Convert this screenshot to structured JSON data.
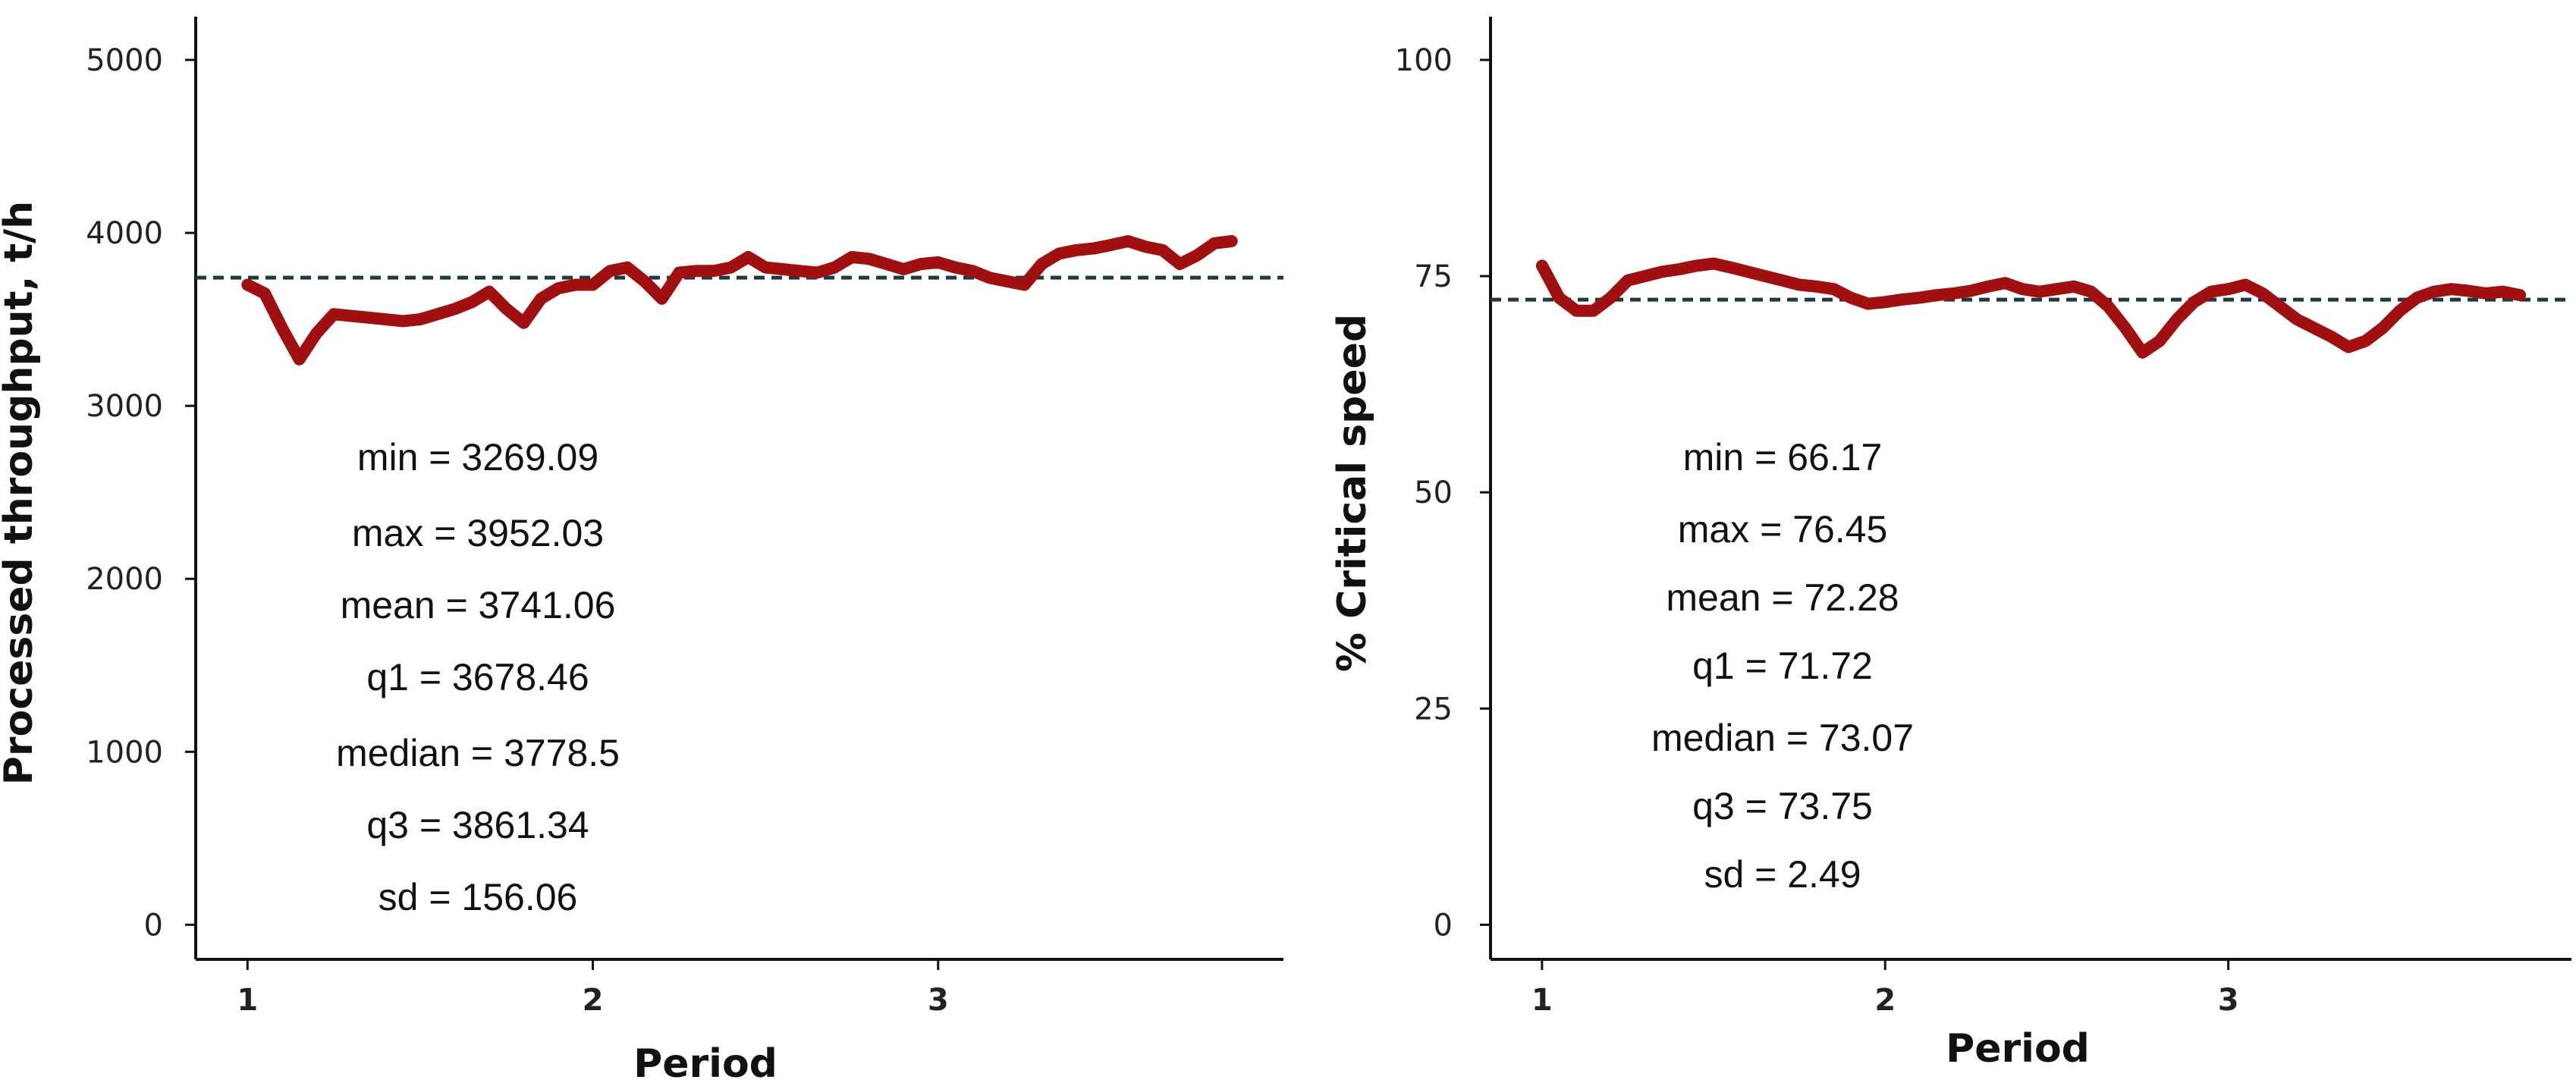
{
  "colors": {
    "series": "#A01010",
    "mean_line": "#1d3a40",
    "axis": "#111111"
  },
  "chart_data": [
    {
      "type": "line",
      "xlabel": "Period",
      "ylabel": "Processed throughput, t/h",
      "xlim": [
        0.85,
        4.0
      ],
      "ylim": [
        -200,
        5250
      ],
      "x_ticks": [
        1,
        2,
        3
      ],
      "x_tick_labels": [
        "1",
        "2",
        "3"
      ],
      "y_ticks": [
        0,
        1000,
        2000,
        3000,
        4000,
        5000
      ],
      "y_tick_labels": [
        "0",
        "1000",
        "2000",
        "3000",
        "4000",
        "5000"
      ],
      "grid": false,
      "reference_line": {
        "y": 3741.06,
        "style": "dashed"
      },
      "series": [
        {
          "x": [
            1.0,
            1.05,
            1.1,
            1.15,
            1.2,
            1.25,
            1.3,
            1.35,
            1.4,
            1.45,
            1.5,
            1.55,
            1.6,
            1.65,
            1.7,
            1.75,
            1.8,
            1.85,
            1.9,
            1.95,
            2.0,
            2.05,
            2.1,
            2.15,
            2.2,
            2.25,
            2.3,
            2.35,
            2.4,
            2.45,
            2.5,
            2.55,
            2.6,
            2.65,
            2.7,
            2.75,
            2.8,
            2.85,
            2.9,
            2.95,
            3.0,
            3.05,
            3.1,
            3.15,
            3.2,
            3.25,
            3.3,
            3.35,
            3.4,
            3.45,
            3.5,
            3.55,
            3.6,
            3.65,
            3.7,
            3.75,
            3.8,
            3.85
          ],
          "y": [
            3700,
            3650,
            3450,
            3269,
            3420,
            3530,
            3520,
            3510,
            3500,
            3490,
            3500,
            3530,
            3560,
            3600,
            3660,
            3560,
            3480,
            3620,
            3680,
            3700,
            3700,
            3780,
            3800,
            3720,
            3620,
            3770,
            3780,
            3780,
            3800,
            3860,
            3800,
            3790,
            3780,
            3770,
            3800,
            3860,
            3850,
            3820,
            3790,
            3820,
            3830,
            3800,
            3780,
            3740,
            3720,
            3700,
            3820,
            3880,
            3900,
            3910,
            3930,
            3952,
            3920,
            3900,
            3820,
            3870,
            3940,
            3952
          ]
        }
      ],
      "annotation_lines": [
        "min =  3269.09",
        "max =  3952.03",
        "mean =  3741.06",
        "q1 =  3678.46",
        "median =  3778.5",
        "q3 =  3861.34",
        "sd =  156.06"
      ]
    },
    {
      "type": "line",
      "xlabel": "Period",
      "ylabel": "% Critical speed",
      "xlim": [
        0.85,
        4.0
      ],
      "ylim": [
        -4,
        105
      ],
      "x_ticks": [
        1,
        2,
        3
      ],
      "x_tick_labels": [
        "1",
        "2",
        "3"
      ],
      "y_ticks": [
        0,
        25,
        50,
        75,
        100
      ],
      "y_tick_labels": [
        "0",
        "25",
        "50",
        "75",
        "100"
      ],
      "grid": false,
      "reference_line": {
        "y": 72.28,
        "style": "dashed"
      },
      "series": [
        {
          "x": [
            1.0,
            1.05,
            1.1,
            1.15,
            1.2,
            1.25,
            1.3,
            1.35,
            1.4,
            1.45,
            1.5,
            1.55,
            1.6,
            1.65,
            1.7,
            1.75,
            1.8,
            1.85,
            1.9,
            1.95,
            2.0,
            2.05,
            2.1,
            2.15,
            2.2,
            2.25,
            2.3,
            2.35,
            2.4,
            2.45,
            2.5,
            2.55,
            2.6,
            2.65,
            2.7,
            2.75,
            2.8,
            2.85,
            2.9,
            2.95,
            3.0,
            3.05,
            3.1,
            3.15,
            3.2,
            3.25,
            3.3,
            3.35,
            3.4,
            3.45,
            3.5,
            3.55,
            3.6,
            3.65,
            3.7,
            3.75,
            3.8,
            3.85
          ],
          "y": [
            76.2,
            72.5,
            71.0,
            71.0,
            72.5,
            74.5,
            75.0,
            75.5,
            75.8,
            76.2,
            76.45,
            76.0,
            75.5,
            75.0,
            74.5,
            74.0,
            73.8,
            73.5,
            72.5,
            71.8,
            72.0,
            72.3,
            72.5,
            72.8,
            73.0,
            73.3,
            73.8,
            74.2,
            73.5,
            73.2,
            73.5,
            73.8,
            73.2,
            71.5,
            69.0,
            66.17,
            67.5,
            70.0,
            72.0,
            73.2,
            73.5,
            74.0,
            73.0,
            71.5,
            70.0,
            69.0,
            68.0,
            66.8,
            67.5,
            69.0,
            71.0,
            72.5,
            73.2,
            73.5,
            73.3,
            73.0,
            73.2,
            72.8
          ]
        }
      ],
      "annotation_lines": [
        "min =  66.17",
        "max =  76.45",
        "mean =  72.28",
        "q1 =  71.72",
        "median =  73.07",
        "q3 =  73.75",
        "sd =  2.49"
      ]
    }
  ]
}
